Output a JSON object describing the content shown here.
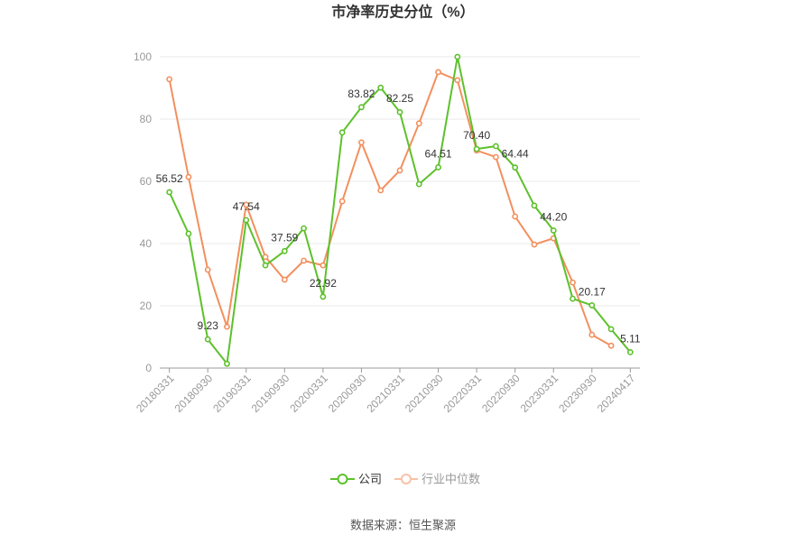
{
  "source": "数据来源：恒生聚源",
  "chart_data": {
    "type": "line",
    "title": "市净率历史分位（%）",
    "categories": [
      "20180331",
      "",
      "20180930",
      "",
      "20190331",
      "",
      "20190930",
      "",
      "20200331",
      "",
      "20200930",
      "",
      "20210331",
      "",
      "20210930",
      "",
      "20220331",
      "",
      "20220930",
      "",
      "20230331",
      "",
      "20230930",
      "",
      "20240417"
    ],
    "ylim": [
      0,
      100
    ],
    "yticks": [
      0,
      20,
      40,
      60,
      80,
      100
    ],
    "grid": true,
    "legend_position": "bottom",
    "series": [
      {
        "name": "公司",
        "color": "#5dc12c",
        "values": [
          56.52,
          43.2,
          9.23,
          1.4,
          47.54,
          33.0,
          37.59,
          44.9,
          22.92,
          75.7,
          83.82,
          90.1,
          82.25,
          59.1,
          64.51,
          100,
          70.4,
          71.3,
          64.44,
          52.2,
          44.2,
          22.3,
          20.17,
          12.5,
          5.11
        ],
        "labels": [
          "56.52",
          null,
          "9.23",
          null,
          "47.54",
          null,
          "37.59",
          null,
          "22.92",
          null,
          "83.82",
          null,
          "82.25",
          null,
          "64.51",
          null,
          "70.40",
          null,
          "64.44",
          null,
          "44.20",
          null,
          "20.17",
          null,
          "5.11"
        ]
      },
      {
        "name": "行业中位数",
        "color": "#f2905e",
        "values": [
          92.8,
          61.4,
          31.6,
          13.3,
          52.5,
          35.7,
          28.4,
          34.5,
          33.0,
          53.6,
          72.5,
          57.1,
          63.5,
          78.6,
          95.1,
          92.5,
          69.9,
          67.8,
          48.7,
          39.7,
          41.7,
          27.5,
          10.7,
          7.2,
          null
        ]
      }
    ]
  }
}
